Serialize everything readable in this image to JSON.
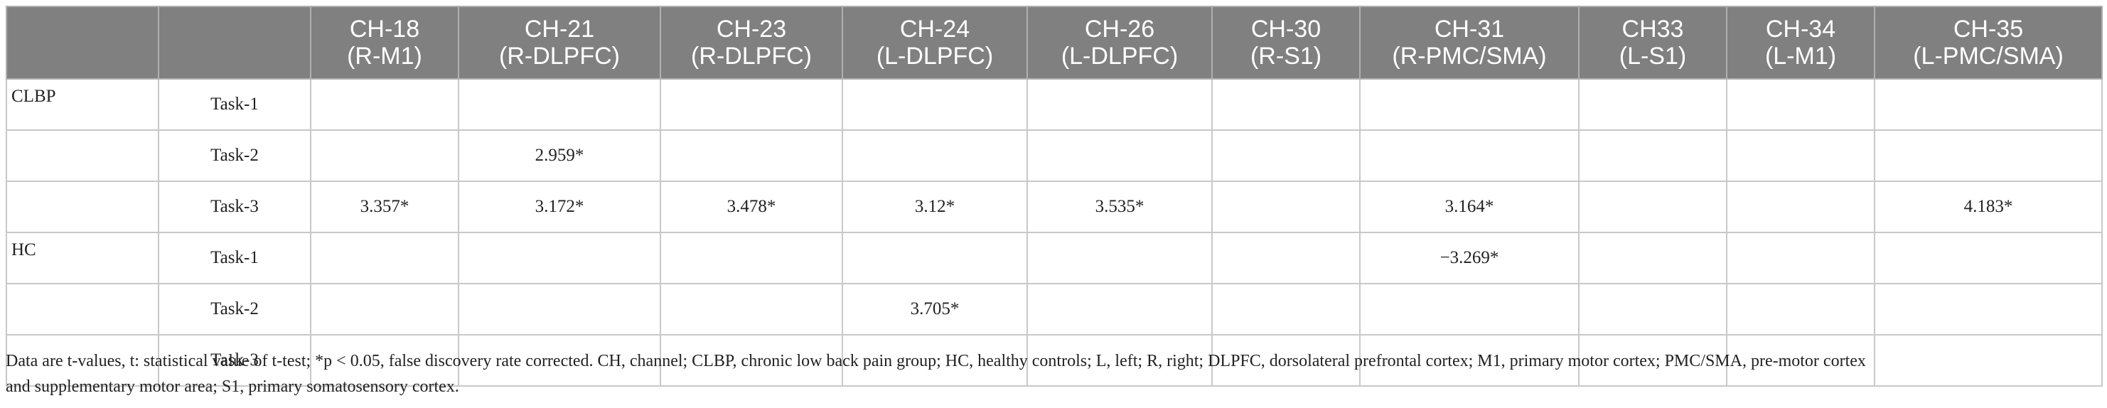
{
  "header": {
    "columns": [
      {
        "l1": "",
        "l2": ""
      },
      {
        "l1": "",
        "l2": ""
      },
      {
        "l1": "CH-18",
        "l2": "(R-M1)"
      },
      {
        "l1": "CH-21",
        "l2": "(R-DLPFC)"
      },
      {
        "l1": "CH-23",
        "l2": "(R-DLPFC)"
      },
      {
        "l1": "CH-24",
        "l2": "(L-DLPFC)"
      },
      {
        "l1": "CH-26",
        "l2": "(L-DLPFC)"
      },
      {
        "l1": "CH-30",
        "l2": "(R-S1)"
      },
      {
        "l1": "CH-31",
        "l2": "(R-PMC/SMA)"
      },
      {
        "l1": "CH33",
        "l2": "(L-S1)"
      },
      {
        "l1": "CH-34",
        "l2": "(L-M1)"
      },
      {
        "l1": "CH-35",
        "l2": "(L-PMC/SMA)"
      }
    ]
  },
  "rows": [
    {
      "group": "CLBP",
      "task": "Task-1",
      "values": [
        "",
        "",
        "",
        "",
        "",
        "",
        "",
        "",
        "",
        ""
      ]
    },
    {
      "group": "",
      "task": "Task-2",
      "values": [
        "",
        "2.959*",
        "",
        "",
        "",
        "",
        "",
        "",
        "",
        ""
      ]
    },
    {
      "group": "",
      "task": "Task-3",
      "values": [
        "3.357*",
        "3.172*",
        "3.478*",
        "3.12*",
        "3.535*",
        "",
        "3.164*",
        "",
        "",
        "4.183*"
      ]
    },
    {
      "group": "HC",
      "task": "Task-1",
      "values": [
        "",
        "",
        "",
        "",
        "",
        "",
        "−3.269*",
        "",
        "",
        ""
      ]
    },
    {
      "group": "",
      "task": "Task-2",
      "values": [
        "",
        "",
        "",
        "3.705*",
        "",
        "",
        "",
        "",
        "",
        ""
      ]
    },
    {
      "group": "",
      "task": "Task-3",
      "values": [
        "",
        "",
        "",
        "",
        "",
        "",
        "",
        "",
        "",
        ""
      ]
    }
  ],
  "footnote": {
    "line1": "Data are t-values, t: statistical value of t-test; *p < 0.05, false discovery rate corrected. CH, channel; CLBP, chronic low back pain group; HC, healthy controls; L, left; R, right; DLPFC, dorsolateral prefrontal cortex; M1, primary motor cortex; PMC/SMA, pre-motor cortex",
    "line2": "and supplementary motor area; S1, primary somatosensory cortex."
  },
  "colors": {
    "header_bg": "#808080",
    "header_text": "#ffffff",
    "border": "#c8c8c8"
  }
}
